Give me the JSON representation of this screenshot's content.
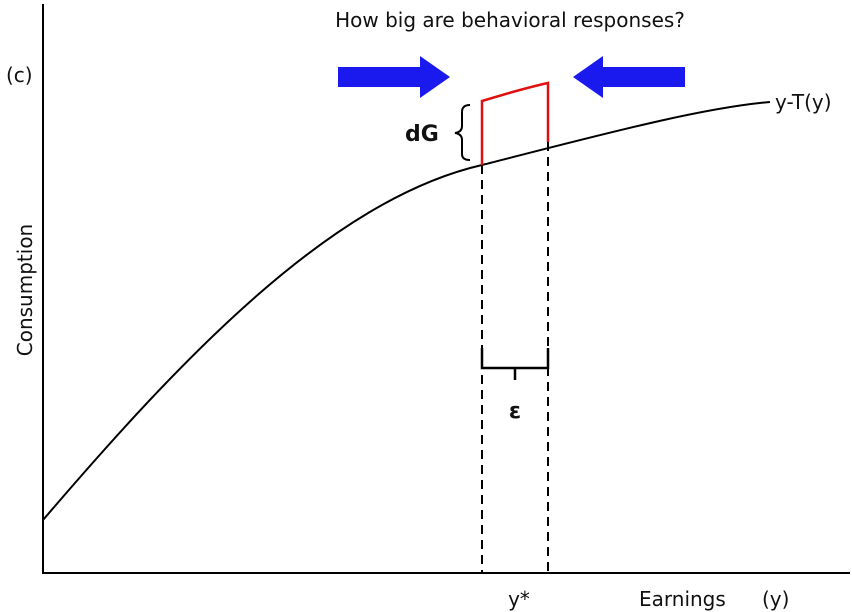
{
  "title": "How big are behavioral responses?",
  "y_axis": {
    "label": "Consumption",
    "symbol": "(c)"
  },
  "x_axis": {
    "label": "Earnings",
    "symbol": "(y)"
  },
  "curve_label": "y-T(y)",
  "annotations": {
    "dG": "dG",
    "epsilon": "ε",
    "y_star": "y*"
  }
}
